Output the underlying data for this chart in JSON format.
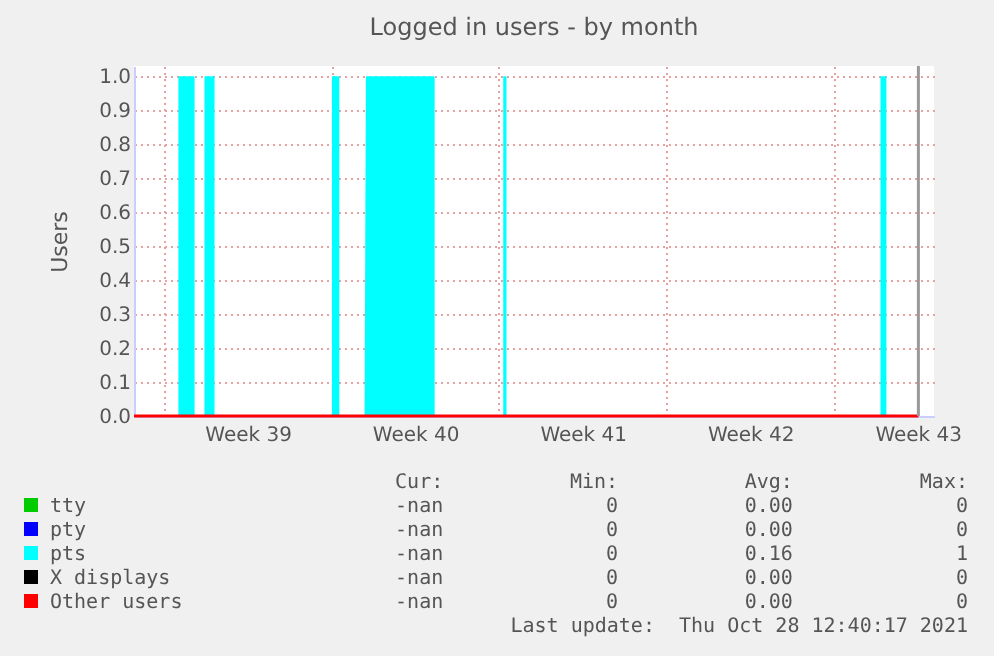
{
  "chart_data": {
    "type": "area",
    "title": "Logged in users - by month",
    "ylabel": "Users",
    "xlim": [
      "2021-09-25T18:00",
      "2021-10-29T04:20"
    ],
    "xticks": [
      {
        "value": "2021-09-27T00:00",
        "label": null
      },
      {
        "value": "2021-09-30T12:00",
        "label": "Week 39"
      },
      {
        "value": "2021-10-04T00:00",
        "label": null
      },
      {
        "value": "2021-10-07T12:00",
        "label": "Week 40"
      },
      {
        "value": "2021-10-11T00:00",
        "label": null
      },
      {
        "value": "2021-10-14T12:00",
        "label": "Week 41"
      },
      {
        "value": "2021-10-18T00:00",
        "label": null
      },
      {
        "value": "2021-10-21T12:00",
        "label": "Week 42"
      },
      {
        "value": "2021-10-25T00:00",
        "label": null
      },
      {
        "value": "2021-10-28T12:00",
        "label": "Week 43"
      }
    ],
    "ylim": [
      0,
      1.03
    ],
    "yticks": [
      {
        "value": 0,
        "label": "0.0"
      },
      {
        "value": 0.1,
        "label": "0.1"
      },
      {
        "value": 0.2,
        "label": "0.2"
      },
      {
        "value": 0.3,
        "label": "0.3"
      },
      {
        "value": 0.4,
        "label": "0.4"
      },
      {
        "value": 0.5,
        "label": "0.5"
      },
      {
        "value": 0.6,
        "label": "0.6"
      },
      {
        "value": 0.7,
        "label": "0.7"
      },
      {
        "value": 0.8,
        "label": "0.8"
      },
      {
        "value": 0.9,
        "label": "0.9"
      },
      {
        "value": 1,
        "label": "1.0"
      }
    ],
    "grid": true,
    "legend": "bottom",
    "series": [
      {
        "name": "tty",
        "type": "line",
        "color": "#00cc00",
        "values": [
          null
        ]
      },
      {
        "name": "pty",
        "type": "line",
        "color": "#0000ff",
        "values": [
          null
        ]
      },
      {
        "name": "pts",
        "color": "#00ffff",
        "x": [
          "2021-09-27T14:30",
          "2021-09-27T14:30",
          "2021-09-28T06:45",
          "2021-09-28T06:45",
          "2021-09-28T16:40",
          "2021-09-28T16:40",
          "2021-09-29T02:45",
          "2021-09-29T02:45",
          "2021-10-04T00:30",
          "2021-10-04T00:30",
          "2021-10-04T07:55",
          "2021-10-04T07:55",
          "2021-10-05T09:15",
          "2021-10-05T10:35",
          "2021-10-08T07:30",
          "2021-10-08T07:30",
          "2021-10-11T04:20",
          "2021-10-11T04:20",
          "2021-10-11T07:35",
          "2021-10-11T07:35",
          "2021-10-26T22:40",
          "2021-10-26T22:40",
          "2021-10-27T04:35",
          "2021-10-27T04:35"
        ],
        "values": [
          0,
          1,
          1,
          0,
          0,
          1,
          1,
          0,
          0,
          1,
          1,
          0,
          0,
          1,
          1,
          0,
          0,
          1,
          1,
          0,
          0,
          1,
          1,
          0
        ]
      },
      {
        "name": "X displays",
        "type": "line",
        "color": "#000000",
        "values": [
          null
        ]
      },
      {
        "name": "Other users",
        "type": "line",
        "color": "#ff0000",
        "x": [
          "2021-09-25T18:00",
          "2021-10-28T12:40"
        ],
        "values": [
          0,
          0
        ]
      }
    ],
    "ref_lines": [
      {
        "axis": "x",
        "value": "2021-10-28T12:40",
        "color": "#999999"
      }
    ],
    "annotations": [
      "Cur:",
      "Min:",
      "Avg:",
      "Max:",
      "-nan",
      "0",
      "0.00",
      "0",
      "-nan",
      "0",
      "0.00",
      "0",
      "-nan",
      "0",
      "0.16",
      "1",
      "-nan",
      "0",
      "0.00",
      "0",
      "-nan",
      "0",
      "0.00",
      "0",
      "Last update:  Thu Oct 28 12:40:17 2021"
    ]
  }
}
